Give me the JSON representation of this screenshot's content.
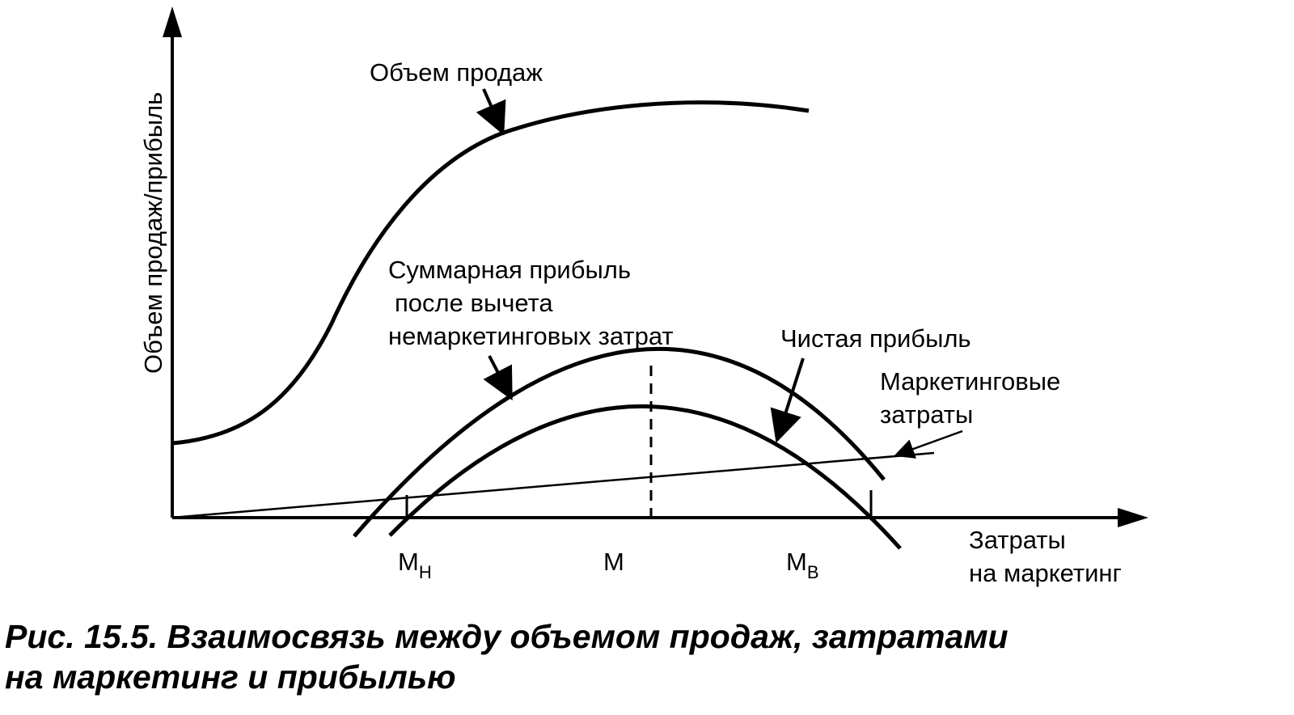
{
  "axes": {
    "y_label": "Объем продаж/прибыль",
    "x_label_line1": "Затраты",
    "x_label_line2": "на маркетинг"
  },
  "ticks": {
    "m_low_base": "М",
    "m_low_sub": "Н",
    "m": "М",
    "m_high_base": "М",
    "m_high_sub": "В"
  },
  "curves": {
    "sales_label": "Объем продаж",
    "gross_profit_line1": "Суммарная прибыль",
    "gross_profit_line2": "после вычета",
    "gross_profit_line3": "немаркетинговых затрат",
    "net_profit_label": "Чистая прибыль",
    "marketing_line1": "Маркетинговые",
    "marketing_line2": "затраты"
  },
  "caption": {
    "line1": "Рис. 15.5. Взаимосвязь между объемом продаж, затратами",
    "line2": "на маркетинг и прибылью"
  }
}
